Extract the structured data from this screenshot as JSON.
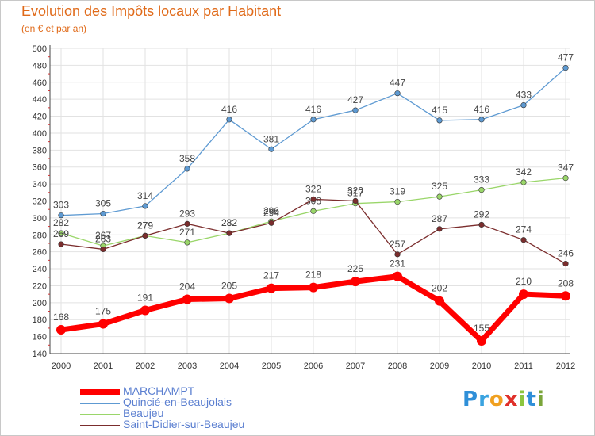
{
  "title": "Evolution des Impôts locaux par Habitant",
  "subtitle": "(en € et par an)",
  "brand": {
    "letters": [
      "P",
      "r",
      "o",
      "x",
      "i",
      "t",
      "i"
    ],
    "colors": [
      "#2f8fd8",
      "#3aa3e0",
      "#f0a020",
      "#e0302a",
      "#8cc63f",
      "#2f8fd8",
      "#7aa53a"
    ]
  },
  "chart_data": {
    "type": "line",
    "title": "Evolution des Impôts locaux par Habitant",
    "subtitle": "(en € et par an)",
    "xlabel": "",
    "ylabel": "",
    "ylim": [
      140,
      500
    ],
    "ytick_step": 20,
    "grid": true,
    "legend_position": "bottom-left",
    "x": [
      "2000",
      "2001",
      "2002",
      "2003",
      "2004",
      "2005",
      "2006",
      "2007",
      "2008",
      "2009",
      "2010",
      "2011",
      "2012"
    ],
    "series": [
      {
        "name": "MARCHAMPT",
        "color": "#ff0000",
        "values": [
          168,
          175,
          191,
          204,
          205,
          217,
          218,
          225,
          231,
          202,
          155,
          210,
          208
        ],
        "labels": [
          "168",
          "175",
          "191",
          "204",
          "205",
          "217",
          "218",
          "225",
          "231",
          "202",
          "155",
          "210",
          "208"
        ]
      },
      {
        "name": "Quincié-en-Beaujolais",
        "color": "#5e9ad2",
        "values": [
          303,
          305,
          314,
          358,
          416,
          381,
          416,
          427,
          447,
          415,
          416,
          433,
          477
        ],
        "labels": [
          "303",
          "305",
          "314",
          "358",
          "416",
          "381",
          "416",
          "427",
          "447",
          "415",
          "416",
          "433",
          "477"
        ]
      },
      {
        "name": "Beaujeu",
        "color": "#9ad66a",
        "values": [
          282,
          267,
          279,
          271,
          282,
          296,
          308,
          317,
          319,
          325,
          333,
          342,
          347
        ],
        "labels": [
          "282",
          "267",
          "279",
          "271",
          "282",
          "296",
          "308",
          "317",
          "319",
          "325",
          "333",
          "342",
          "347"
        ]
      },
      {
        "name": "Saint-Didier-sur-Beaujeu",
        "color": "#7b2d2d",
        "values": [
          269,
          263,
          279,
          293,
          282,
          294,
          322,
          320,
          257,
          287,
          292,
          274,
          246
        ],
        "labels": [
          "269",
          "263",
          "279",
          "293",
          "282",
          "294",
          "322",
          "320",
          "257",
          "287",
          "292",
          "274",
          "246"
        ]
      }
    ]
  }
}
